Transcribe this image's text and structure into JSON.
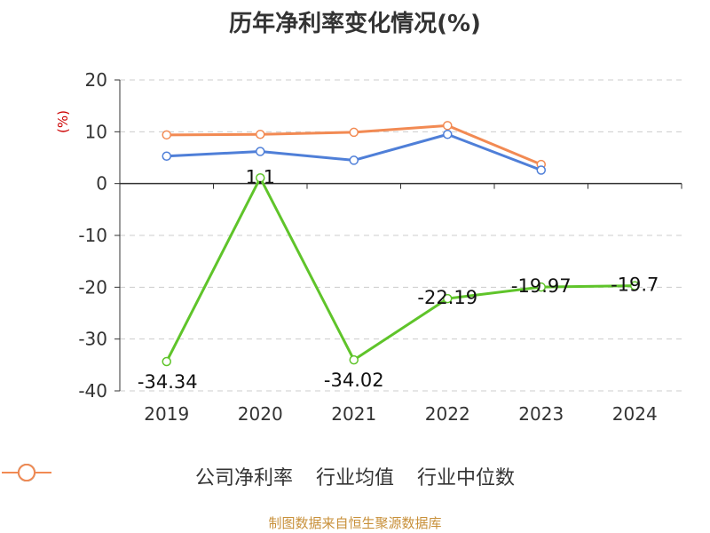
{
  "chart_data": {
    "type": "line",
    "title": "历年净利率变化情况(%)",
    "ylabel": "(%)",
    "categories": [
      "2019",
      "2020",
      "2021",
      "2022",
      "2023",
      "2024"
    ],
    "ylim": [
      -40,
      20
    ],
    "yticks": [
      20,
      10,
      0,
      -10,
      -20,
      -30,
      -40
    ],
    "grid": true,
    "legend_position": "bottom",
    "series": [
      {
        "name": "公司净利率",
        "values": [
          -34.34,
          1.1,
          -34.02,
          -22.19,
          -19.97,
          -19.7
        ],
        "data_labels": [
          "-34.34",
          "1.1",
          "-34.02",
          "-22.19",
          "-19.97",
          "-19.7"
        ],
        "color": "#5fc42a"
      },
      {
        "name": "行业均值",
        "values": [
          5.3,
          6.2,
          4.5,
          9.5,
          2.6,
          null
        ],
        "color": "#4f7fd8"
      },
      {
        "name": "行业中位数",
        "values": [
          9.4,
          9.5,
          9.9,
          11.2,
          3.7,
          null
        ],
        "color": "#f28a53"
      }
    ]
  },
  "footer": "制图数据来自恒生聚源数据库",
  "colors": {
    "unit": "#cc0000",
    "footer": "#c8903a",
    "axis": "#333333",
    "grid": "#cccccc"
  }
}
